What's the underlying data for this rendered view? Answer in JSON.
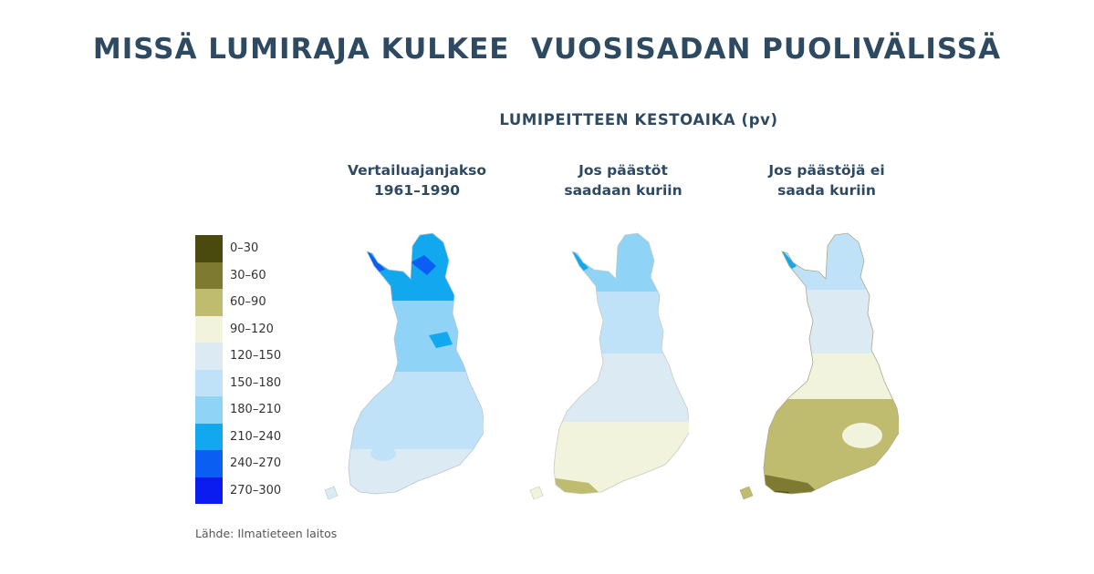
{
  "title": "MISSÄ LUMIRAJA KULKEE  VUOSISADAN PUOLIVÄLISSÄ",
  "subtitle": "LUMIPEITTEEN KESTOAIKA (pv)",
  "maps": [
    {
      "title_line1": "Vertailuajanjakso",
      "title_line2": "1961–1990"
    },
    {
      "title_line1": "Jos päästöt",
      "title_line2": "saadaan kuriin"
    },
    {
      "title_line1": "Jos päästöjä ei",
      "title_line2": "saada kuriin"
    }
  ],
  "legend": [
    {
      "label": "0–30",
      "color": "#4b4a0e"
    },
    {
      "label": "30–60",
      "color": "#7f7a32"
    },
    {
      "label": "60–90",
      "color": "#bfbc70"
    },
    {
      "label": "90–120",
      "color": "#f1f3dc"
    },
    {
      "label": "120–150",
      "color": "#dcebf3"
    },
    {
      "label": "150–180",
      "color": "#c0e2f8"
    },
    {
      "label": "180–210",
      "color": "#8fd3f6"
    },
    {
      "label": "210–240",
      "color": "#12a8f0"
    },
    {
      "label": "240–270",
      "color": "#0b5ef2"
    },
    {
      "label": "270–300",
      "color": "#0a1cf0"
    }
  ],
  "source": "Lähde: Ilmatieteen laitos"
}
